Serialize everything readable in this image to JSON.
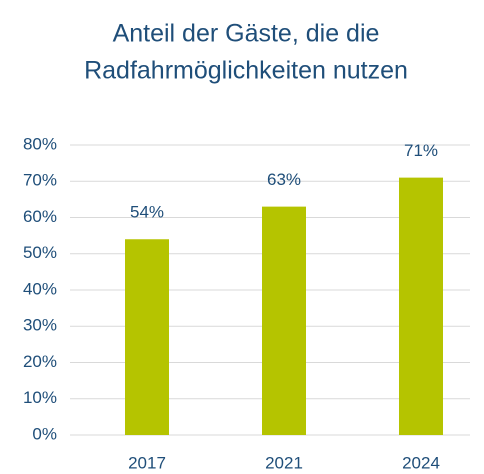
{
  "chart_data": {
    "type": "bar",
    "title": [
      "Anteil der Gäste, die die",
      "Radfahrmöglichkeiten nutzen"
    ],
    "categories": [
      "2017",
      "2021",
      "2024"
    ],
    "values": [
      54,
      63,
      71
    ],
    "value_labels": [
      "54%",
      "63%",
      "71%"
    ],
    "color": "#b5c400",
    "ylim": [
      0,
      80
    ],
    "yticks": [
      {
        "value": 0,
        "label": "0%"
      },
      {
        "value": 10,
        "label": "10%"
      },
      {
        "value": 20,
        "label": "20%"
      },
      {
        "value": 30,
        "label": "30%"
      },
      {
        "value": 40,
        "label": "40%"
      },
      {
        "value": 50,
        "label": "50%"
      },
      {
        "value": 60,
        "label": "60%"
      },
      {
        "value": 70,
        "label": "70%"
      },
      {
        "value": 80,
        "label": "80%"
      }
    ],
    "grid": true
  }
}
